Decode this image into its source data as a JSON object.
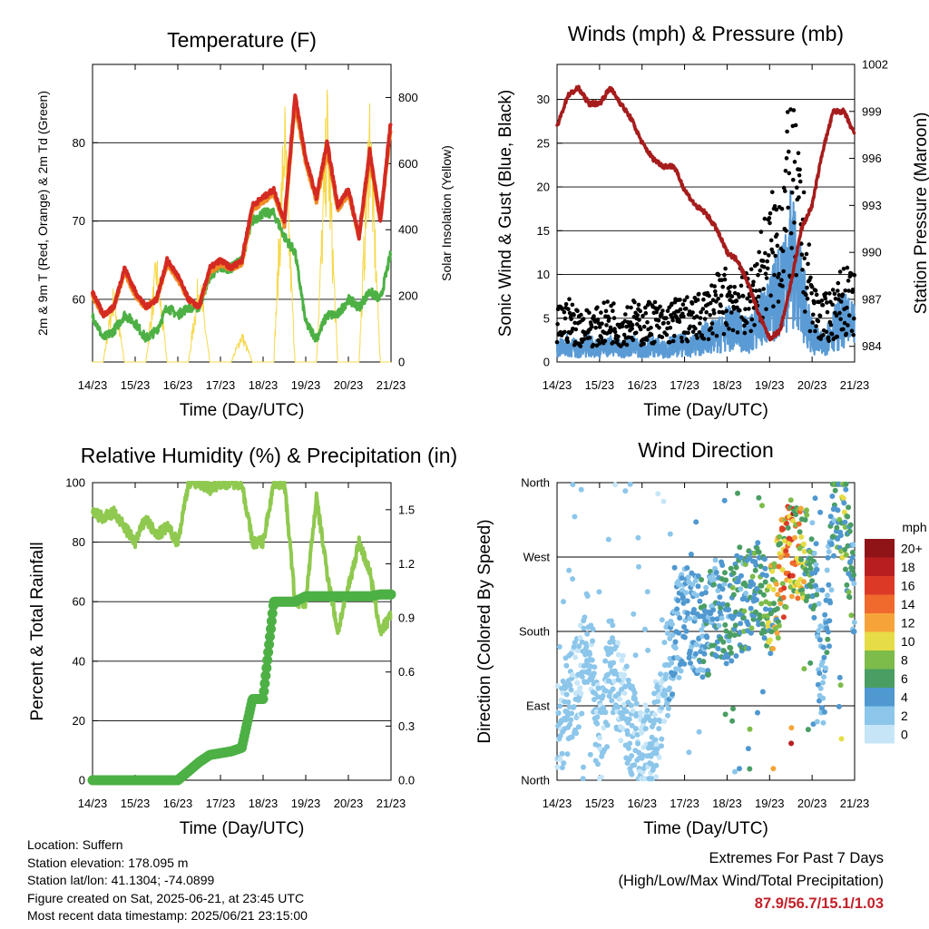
{
  "colors": {
    "temp_red": "#d42a22",
    "temp_orange": "#f08a24",
    "dewpoint_green": "#4db045",
    "solar_yellow": "#f6d84a",
    "wind_blue": "#5b9bd5",
    "gust_black": "#000000",
    "pressure_maroon": "#a61c1c",
    "rh_green": "#8fc94f",
    "precip_green": "#4db045",
    "extremes_red": "#c2212a"
  },
  "time_ticks": [
    "14/23",
    "15/23",
    "16/23",
    "17/23",
    "18/23",
    "19/23",
    "20/23",
    "21/23"
  ],
  "temperature": {
    "title": "Temperature (F)",
    "ylabel": "2m & 9m T (Red, Orange) & 2m Td (Green)",
    "y2label": "Solar Insolation (Yellow)",
    "xlabel": "Time (Day/UTC)",
    "y_ticks": [
      "60",
      "70",
      "80"
    ],
    "y2_ticks": [
      "0",
      "200",
      "400",
      "600",
      "800"
    ]
  },
  "winds": {
    "title": "Winds (mph) & Pressure (mb)",
    "ylabel": "Sonic Wind & Gust (Blue, Black)",
    "y2label": "Station Pressure (Maroon)",
    "xlabel": "Time (Day/UTC)",
    "y_ticks": [
      "0",
      "5",
      "10",
      "15",
      "20",
      "25",
      "30"
    ],
    "y2_ticks": [
      "984",
      "987",
      "990",
      "993",
      "996",
      "999",
      "1002"
    ]
  },
  "humidity": {
    "title": "Relative Humidity (%) & Precipitation (in)",
    "ylabel": "Percent & Total Rainfall",
    "xlabel": "Time (Day/UTC)",
    "y_ticks": [
      "0",
      "20",
      "40",
      "60",
      "80",
      "100"
    ],
    "y2_ticks": [
      "0.0",
      "0.3",
      "0.6",
      "0.9",
      "1.2",
      "1.5"
    ]
  },
  "direction": {
    "title": "Wind Direction",
    "ylabel": "Direction (Colored By Speed)",
    "xlabel": "Time (Day/UTC)",
    "y_ticks": [
      "North",
      "East",
      "South",
      "West",
      "North"
    ],
    "legend_title": "mph",
    "legend_labels": [
      "0",
      "2",
      "4",
      "6",
      "8",
      "10",
      "12",
      "14",
      "16",
      "18",
      "20+"
    ],
    "legend_colors": [
      "#c6e6f8",
      "#8cc6ea",
      "#4f98d0",
      "#4a9e64",
      "#7dbc4a",
      "#e6dc46",
      "#f6a43a",
      "#ef6a2c",
      "#dc3a27",
      "#b81e20",
      "#8e1418"
    ]
  },
  "info": {
    "location": "Location: Suffern",
    "elevation": "Station elevation: 178.095 m",
    "latlon": "Station lat/lon: 41.1304; -74.0899",
    "created": "Figure created on Sat, 2025-06-21, at 23:45 UTC",
    "recent": "Most recent data timestamp: 2025/06/21 23:15:00"
  },
  "extremes": {
    "line1": "Extremes For Past 7 Days",
    "line2": "(High/Low/Max Wind/Total Precipitation)",
    "values": "87.9/56.7/15.1/1.03"
  },
  "chart_data": [
    {
      "type": "line",
      "title": "Temperature (F)",
      "xlabel": "Time (Day/UTC)",
      "ylabel": "2m & 9m T (Red, Orange) & 2m Td (Green)",
      "y2label": "Solar Insolation (Yellow)",
      "x": [
        14.0,
        14.25,
        14.5,
        14.75,
        15.0,
        15.25,
        15.5,
        15.75,
        16.0,
        16.25,
        16.5,
        16.75,
        17.0,
        17.25,
        17.5,
        17.75,
        18.0,
        18.25,
        18.5,
        18.75,
        19.0,
        19.25,
        19.5,
        19.75,
        20.0,
        20.25,
        20.5,
        20.75,
        21.0
      ],
      "series": [
        {
          "name": "2m T",
          "axis": "left",
          "values": [
            61,
            58,
            59,
            64,
            61,
            59,
            60,
            65,
            63,
            60,
            59,
            64,
            65,
            64,
            65,
            72,
            73,
            74,
            70,
            86,
            78,
            73,
            80,
            72,
            74,
            68,
            79,
            70,
            83
          ]
        },
        {
          "name": "9m T",
          "axis": "left",
          "values": [
            60.5,
            58,
            59,
            63.5,
            60.5,
            59,
            60,
            64.5,
            62.5,
            60,
            59,
            63.5,
            64.5,
            64,
            64.5,
            71.5,
            72.5,
            73.5,
            69.5,
            85,
            77.5,
            72.5,
            79,
            71.5,
            73.5,
            68,
            78,
            70,
            82
          ]
        },
        {
          "name": "2m Td",
          "axis": "left",
          "values": [
            58,
            55,
            56,
            58,
            57,
            55,
            56,
            59,
            58,
            59,
            59,
            63,
            64,
            64,
            65,
            70,
            71,
            71,
            68,
            66,
            57,
            55,
            58,
            58,
            60,
            59,
            61,
            60,
            66
          ]
        },
        {
          "name": "Solar Insolation",
          "axis": "right",
          "values": [
            0,
            0,
            250,
            0,
            0,
            0,
            350,
            0,
            0,
            0,
            300,
            0,
            0,
            0,
            100,
            0,
            0,
            0,
            850,
            0,
            0,
            0,
            880,
            0,
            0,
            0,
            880,
            0,
            0
          ]
        }
      ],
      "ylim": [
        52,
        90
      ],
      "y2lim": [
        0,
        900
      ]
    },
    {
      "type": "line",
      "title": "Winds (mph) & Pressure (mb)",
      "xlabel": "Time (Day/UTC)",
      "ylabel": "Sonic Wind & Gust (Blue, Black)",
      "y2label": "Station Pressure (Maroon)",
      "x": [
        14.0,
        14.25,
        14.5,
        14.75,
        15.0,
        15.25,
        15.5,
        15.75,
        16.0,
        16.25,
        16.5,
        16.75,
        17.0,
        17.25,
        17.5,
        17.75,
        18.0,
        18.25,
        18.5,
        18.75,
        19.0,
        19.25,
        19.5,
        19.75,
        20.0,
        20.25,
        20.5,
        20.75,
        21.0
      ],
      "series": [
        {
          "name": "Wind",
          "axis": "left",
          "values": [
            1.5,
            2,
            1.5,
            2,
            1.5,
            2,
            1.5,
            2,
            1.5,
            2,
            1.5,
            2,
            2,
            2,
            3,
            3,
            4,
            4,
            3,
            5,
            6,
            9,
            13,
            8,
            3,
            2,
            4,
            5,
            4
          ]
        },
        {
          "name": "Gust",
          "axis": "left",
          "values": [
            5,
            6,
            5,
            5,
            5,
            6,
            5,
            6,
            5,
            6,
            5,
            6,
            6,
            6,
            7,
            8,
            9,
            9,
            8,
            12,
            15,
            18,
            25,
            18,
            8,
            6,
            7,
            9,
            8
          ]
        },
        {
          "name": "Station Pressure",
          "axis": "right",
          "values": [
            998,
            1000,
            1000.5,
            999.5,
            999.5,
            1000.5,
            999.5,
            998.5,
            997,
            996,
            995.5,
            995.5,
            994,
            993,
            992.5,
            991.5,
            990,
            989.5,
            988,
            986,
            984.5,
            985,
            988,
            991.5,
            993,
            996.5,
            999,
            999,
            997.5
          ]
        }
      ],
      "ylim": [
        0,
        34
      ],
      "y2lim": [
        983,
        1002
      ]
    },
    {
      "type": "line",
      "title": "Relative Humidity (%) & Precipitation (in)",
      "xlabel": "Time (Day/UTC)",
      "ylabel": "Percent & Total Rainfall",
      "x": [
        14.0,
        14.25,
        14.5,
        14.75,
        15.0,
        15.25,
        15.5,
        15.75,
        16.0,
        16.25,
        16.5,
        16.75,
        17.0,
        17.25,
        17.5,
        17.75,
        18.0,
        18.25,
        18.5,
        18.75,
        19.0,
        19.25,
        19.5,
        19.75,
        20.0,
        20.25,
        20.5,
        20.75,
        21.0
      ],
      "series": [
        {
          "name": "Relative Humidity",
          "axis": "left",
          "values": [
            90,
            88,
            90,
            85,
            80,
            88,
            82,
            85,
            80,
            100,
            100,
            98,
            100,
            100,
            100,
            80,
            80,
            100,
            100,
            60,
            60,
            95,
            70,
            50,
            65,
            80,
            70,
            50,
            55
          ]
        },
        {
          "name": "Total Rainfall",
          "axis": "right",
          "values": [
            0,
            0,
            0,
            0,
            0,
            0,
            0,
            0,
            0,
            0.05,
            0.1,
            0.14,
            0.15,
            0.16,
            0.18,
            0.45,
            0.45,
            0.99,
            0.99,
            0.99,
            1.02,
            1.02,
            1.02,
            1.02,
            1.02,
            1.02,
            1.02,
            1.03,
            1.03
          ]
        }
      ],
      "ylim": [
        0,
        100
      ],
      "y2lim": [
        0,
        1.65
      ]
    },
    {
      "type": "scatter",
      "title": "Wind Direction",
      "xlabel": "Time (Day/UTC)",
      "ylabel": "Direction (Colored By Speed)",
      "x": [
        14.0,
        14.25,
        14.5,
        14.75,
        15.0,
        15.25,
        15.5,
        15.75,
        16.0,
        16.25,
        16.5,
        16.75,
        17.0,
        17.25,
        17.5,
        17.75,
        18.0,
        18.25,
        18.5,
        18.75,
        19.0,
        19.25,
        19.5,
        19.75,
        20.0,
        20.25,
        20.5,
        20.75,
        21.0
      ],
      "series": [
        {
          "name": "Direction (deg)",
          "values": [
            60,
            90,
            120,
            180,
            40,
            150,
            100,
            60,
            30,
            40,
            110,
            170,
            200,
            190,
            180,
            210,
            200,
            210,
            220,
            230,
            200,
            250,
            280,
            270,
            270,
            100,
            330,
            320,
            210
          ]
        },
        {
          "name": "Speed (mph)",
          "values": [
            1,
            2,
            1,
            2,
            1,
            2,
            1,
            2,
            1,
            2,
            1,
            3,
            3,
            3,
            4,
            4,
            5,
            5,
            6,
            5,
            7,
            10,
            13,
            9,
            4,
            3,
            5,
            7,
            4
          ]
        }
      ],
      "ylim": [
        0,
        360
      ]
    }
  ]
}
